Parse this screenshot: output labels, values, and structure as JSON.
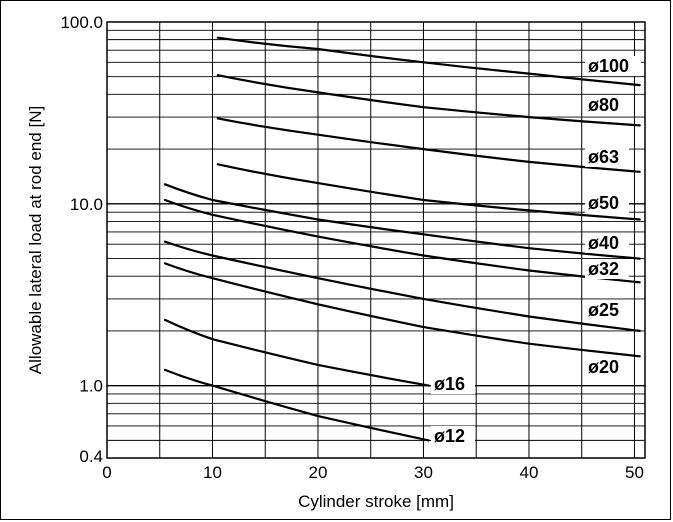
{
  "chart_data": {
    "type": "line",
    "xlabel": "Cylinder stroke [mm]",
    "ylabel": "Allowable lateral load at rod end [N]",
    "xlim": [
      0,
      51
    ],
    "ylim": [
      0.4,
      100
    ],
    "yscale": "log",
    "x_ticks": [
      "0",
      "10",
      "20",
      "30",
      "40",
      "50"
    ],
    "y_ticks": [
      "100.0",
      "10.0",
      "1.0",
      "0.4"
    ],
    "x_tick_values": [
      0,
      10,
      20,
      30,
      40,
      50
    ],
    "y_tick_values": [
      100,
      10,
      1,
      0.4
    ],
    "grid": true,
    "series": [
      {
        "name": "ø100",
        "x": [
          10.5,
          20,
          30,
          40,
          50.5
        ],
        "y": [
          82,
          71,
          60,
          52,
          45
        ]
      },
      {
        "name": "ø80",
        "x": [
          10.5,
          20,
          30,
          40,
          50.5
        ],
        "y": [
          51,
          41,
          34,
          30,
          27
        ]
      },
      {
        "name": "ø63",
        "x": [
          10.5,
          20,
          30,
          40,
          50.5
        ],
        "y": [
          29.5,
          24,
          20,
          17,
          15
        ]
      },
      {
        "name": "ø50",
        "x": [
          10.5,
          20,
          30,
          40,
          50.5
        ],
        "y": [
          16.5,
          13,
          10.5,
          9.2,
          8.2
        ]
      },
      {
        "name": "ø40",
        "x": [
          5.5,
          10,
          20,
          30,
          40,
          50.5
        ],
        "y": [
          12.8,
          10.5,
          8.2,
          6.8,
          5.7,
          5.0
        ]
      },
      {
        "name": "ø32",
        "x": [
          5.5,
          10,
          20,
          30,
          40,
          50.5
        ],
        "y": [
          10.5,
          8.7,
          6.6,
          5.2,
          4.3,
          3.7
        ]
      },
      {
        "name": "ø25",
        "x": [
          5.5,
          10,
          20,
          30,
          40,
          50.5
        ],
        "y": [
          6.2,
          5.2,
          3.9,
          3.0,
          2.4,
          2.0
        ]
      },
      {
        "name": "ø20",
        "x": [
          5.5,
          10,
          20,
          30,
          40,
          50.5
        ],
        "y": [
          4.7,
          3.9,
          2.8,
          2.1,
          1.7,
          1.45
        ]
      },
      {
        "name": "ø16",
        "x": [
          5.5,
          10,
          20,
          30.5
        ],
        "y": [
          2.3,
          1.8,
          1.3,
          1.0
        ]
      },
      {
        "name": "ø12",
        "x": [
          5.5,
          10,
          20,
          30.5
        ],
        "y": [
          1.22,
          1.0,
          0.68,
          0.5
        ]
      }
    ]
  }
}
